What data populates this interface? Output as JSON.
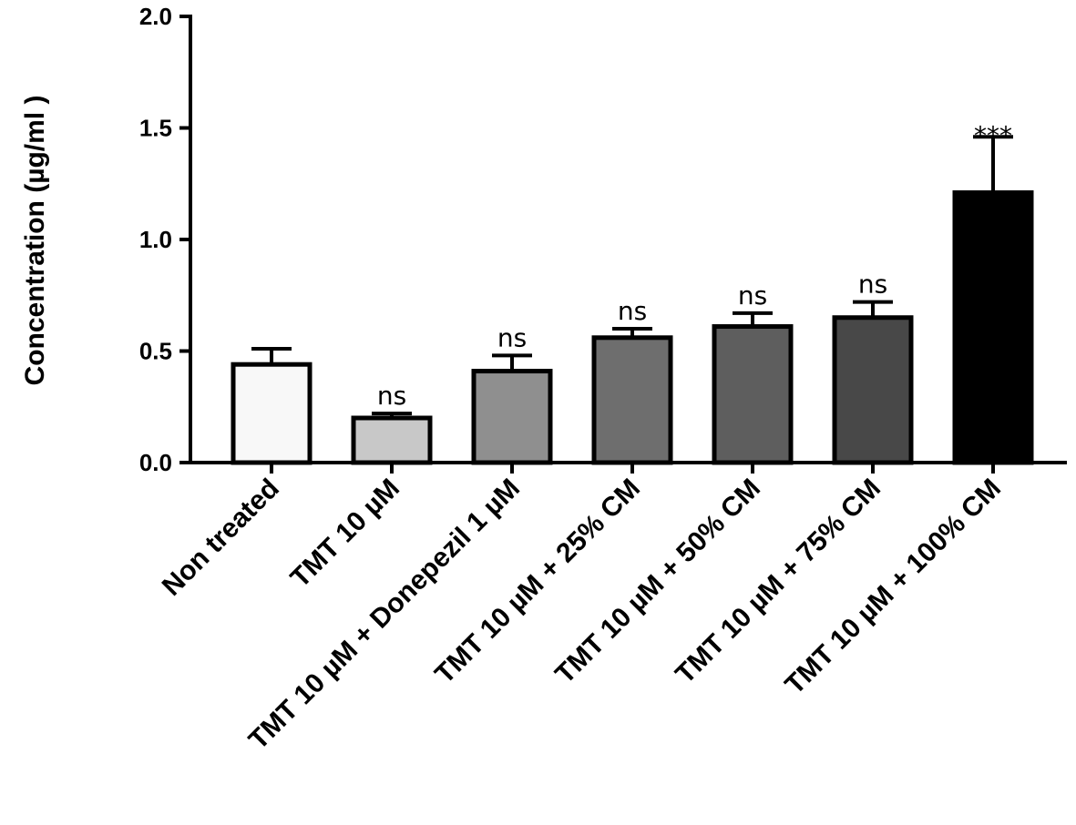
{
  "chart_data": {
    "type": "bar",
    "title": "",
    "xlabel": "",
    "ylabel": "Concentration (µg/ml )",
    "ylim": [
      0,
      2.0
    ],
    "yticks": [
      "0.0",
      "0.5",
      "1.0",
      "1.5",
      "2.0"
    ],
    "ytick_values": [
      0,
      0.5,
      1.0,
      1.5,
      2.0
    ],
    "grid": false,
    "categories": [
      "Non treated",
      "TMT 10  µM",
      "TMT 10  µM + Donepezil 1 µM",
      "TMT 10  µM + 25% CM",
      "TMT 10  µM + 50% CM",
      "TMT 10  µM + 75% CM",
      "TMT 10  µM + 100% CM"
    ],
    "values": [
      0.44,
      0.2,
      0.41,
      0.56,
      0.61,
      0.65,
      1.21
    ],
    "errors": [
      0.07,
      0.02,
      0.07,
      0.04,
      0.06,
      0.07,
      0.25
    ],
    "significance": [
      "",
      "ns",
      "ns",
      "ns",
      "ns",
      "ns",
      "***"
    ],
    "bar_colors": [
      "#f8f8f8",
      "#c8c8c8",
      "#8f8f8f",
      "#6e6e6e",
      "#5e5e5e",
      "#484848",
      "#000000"
    ]
  }
}
